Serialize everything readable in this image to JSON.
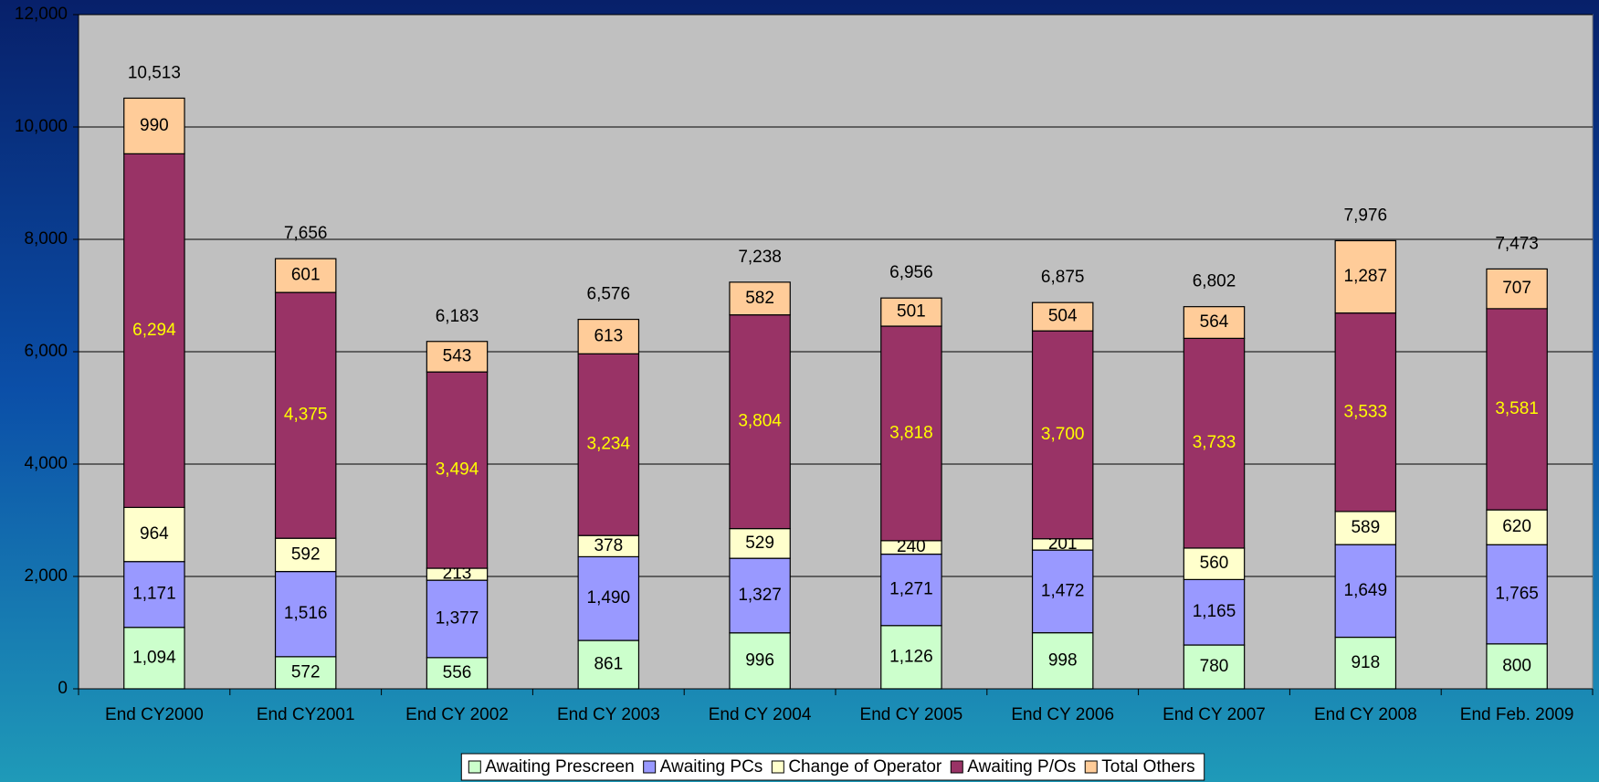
{
  "chart_data": {
    "type": "stacked_bar",
    "categories": [
      "End CY2000",
      "End CY2001",
      "End CY 2002",
      "End CY 2003",
      "End CY 2004",
      "End CY 2005",
      "End CY 2006",
      "End CY 2007",
      "End CY 2008",
      "End Feb. 2009"
    ],
    "series": [
      {
        "name": "Awaiting Prescreen",
        "color": "#ccffcc",
        "label_color": "#000000",
        "values": [
          1094,
          572,
          556,
          861,
          996,
          1126,
          998,
          780,
          918,
          800
        ],
        "value_labels": [
          "1,094",
          "572",
          "556",
          "861",
          "996",
          "1,126",
          "998",
          "780",
          "918",
          "800"
        ]
      },
      {
        "name": "Awaiting PCs",
        "color": "#9999ff",
        "label_color": "#000000",
        "values": [
          1171,
          1516,
          1377,
          1490,
          1327,
          1271,
          1472,
          1165,
          1649,
          1765
        ],
        "value_labels": [
          "1,171",
          "1,516",
          "1,377",
          "1,490",
          "1,327",
          "1,271",
          "1,472",
          "1,165",
          "1,649",
          "1,765"
        ]
      },
      {
        "name": "Change of Operator",
        "color": "#ffffcc",
        "label_color": "#000000",
        "values": [
          964,
          592,
          213,
          378,
          529,
          240,
          201,
          560,
          589,
          620
        ],
        "value_labels": [
          "964",
          "592",
          "213",
          "378",
          "529",
          "240",
          "201",
          "560",
          "589",
          "620"
        ]
      },
      {
        "name": "Awaiting P/Os",
        "color": "#993366",
        "label_color": "#ffff00",
        "values": [
          6294,
          4375,
          3494,
          3234,
          3804,
          3818,
          3700,
          3733,
          3533,
          3581
        ],
        "value_labels": [
          "6,294",
          "4,375",
          "3,494",
          "3,234",
          "3,804",
          "3,818",
          "3,700",
          "3,733",
          "3,533",
          "3,581"
        ]
      },
      {
        "name": "Total Others",
        "color": "#ffcc99",
        "label_color": "#000000",
        "values": [
          990,
          601,
          543,
          613,
          582,
          501,
          504,
          564,
          1287,
          707
        ],
        "value_labels": [
          "990",
          "601",
          "543",
          "613",
          "582",
          "501",
          "504",
          "564",
          "1,287",
          "707"
        ]
      }
    ],
    "totals": {
      "values": [
        10513,
        7656,
        6183,
        6576,
        7238,
        6956,
        6875,
        6802,
        7976,
        7473
      ],
      "value_labels": [
        "10,513",
        "7,656",
        "6,183",
        "6,576",
        "7,238",
        "6,956",
        "6,875",
        "6,802",
        "7,976",
        "7,473"
      ]
    },
    "ylim": [
      0,
      12000
    ],
    "yticks": [
      0,
      {
        "value": 2000,
        "label": "2,000"
      },
      {
        "value": 4000,
        "label": "4,000"
      },
      {
        "value": 6000,
        "label": "6,000"
      },
      {
        "value": 8000,
        "label": "8,000"
      },
      {
        "value": 10000,
        "label": "10,000"
      },
      {
        "value": 12000,
        "label": "12,000"
      }
    ],
    "grid": true,
    "legend": "bottom"
  }
}
